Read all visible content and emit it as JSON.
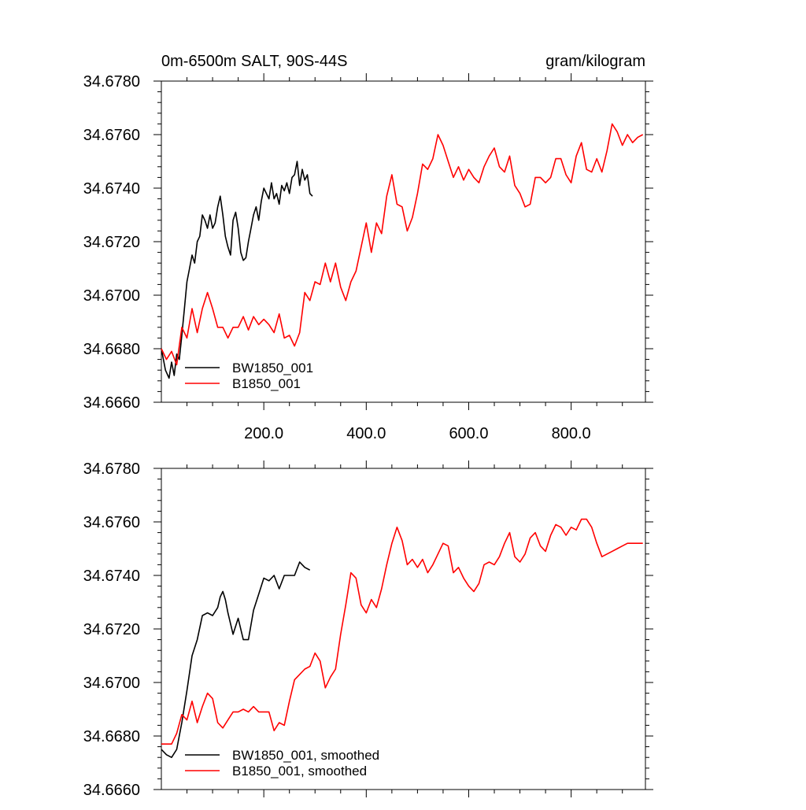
{
  "colors": {
    "bw": "#000000",
    "b": "#ff0000"
  },
  "chart_data": [
    {
      "type": "line",
      "title": "0m-6500m SALT, 90S-44S",
      "units": "gram/kilogram",
      "xlabel": "",
      "ylabel": "",
      "xlim": [
        0,
        945
      ],
      "ylim": [
        34.666,
        34.678
      ],
      "xticks": [
        200,
        400,
        600,
        800
      ],
      "xtick_labels": [
        "200.0",
        "400.0",
        "600.0",
        "800.0"
      ],
      "yticks": [
        34.666,
        34.668,
        34.67,
        34.672,
        34.674,
        34.676,
        34.678
      ],
      "ytick_labels": [
        "34.6660",
        "34.6680",
        "34.6700",
        "34.6720",
        "34.6740",
        "34.6760",
        "34.6780"
      ],
      "grid": false,
      "legend_position": "bottom-left",
      "series": [
        {
          "name": "BW1850_001",
          "color": "#000000",
          "x": [
            0,
            8,
            15,
            20,
            25,
            30,
            35,
            40,
            45,
            50,
            55,
            60,
            65,
            70,
            75,
            80,
            85,
            90,
            95,
            100,
            105,
            110,
            115,
            120,
            125,
            130,
            135,
            140,
            145,
            150,
            155,
            160,
            165,
            170,
            175,
            180,
            185,
            190,
            195,
            200,
            205,
            210,
            215,
            220,
            225,
            230,
            235,
            240,
            245,
            250,
            255,
            260,
            265,
            270,
            275,
            280,
            285,
            290,
            295
          ],
          "values": [
            34.668,
            34.6672,
            34.6669,
            34.6675,
            34.667,
            34.6678,
            34.6676,
            34.6685,
            34.6695,
            34.6705,
            34.671,
            34.6715,
            34.6712,
            34.672,
            34.6722,
            34.673,
            34.6728,
            34.6725,
            34.673,
            34.6725,
            34.6727,
            34.6733,
            34.6737,
            34.673,
            34.6722,
            34.6718,
            34.6715,
            34.6728,
            34.6731,
            34.6725,
            34.6716,
            34.6713,
            34.6714,
            34.672,
            34.6725,
            34.673,
            34.6733,
            34.6728,
            34.6735,
            34.674,
            34.6738,
            34.6736,
            34.6742,
            34.6736,
            34.6738,
            34.6734,
            34.6741,
            34.6739,
            34.6742,
            34.6738,
            34.6744,
            34.6745,
            34.675,
            34.6741,
            34.6747,
            34.6743,
            34.6745,
            34.6738,
            34.6737
          ]
        },
        {
          "name": "B1850_001",
          "color": "#ff0000",
          "x": [
            0,
            10,
            20,
            30,
            40,
            50,
            60,
            70,
            80,
            90,
            100,
            110,
            120,
            130,
            140,
            150,
            160,
            170,
            180,
            190,
            200,
            210,
            220,
            230,
            240,
            250,
            260,
            270,
            280,
            290,
            300,
            310,
            320,
            330,
            340,
            350,
            360,
            370,
            380,
            390,
            400,
            410,
            420,
            430,
            440,
            450,
            460,
            470,
            480,
            490,
            500,
            510,
            520,
            530,
            540,
            550,
            560,
            570,
            580,
            590,
            600,
            610,
            620,
            630,
            640,
            650,
            660,
            670,
            680,
            690,
            700,
            710,
            720,
            730,
            740,
            750,
            760,
            770,
            780,
            790,
            800,
            810,
            820,
            830,
            840,
            850,
            860,
            870,
            880,
            890,
            900,
            910,
            920,
            930,
            940
          ],
          "values": [
            34.668,
            34.6676,
            34.6679,
            34.6674,
            34.6688,
            34.6684,
            34.6695,
            34.6686,
            34.6695,
            34.6701,
            34.6695,
            34.6688,
            34.6688,
            34.6684,
            34.6688,
            34.6688,
            34.6692,
            34.6687,
            34.6692,
            34.6689,
            34.6691,
            34.6689,
            34.6686,
            34.6693,
            34.6684,
            34.6685,
            34.6681,
            34.6686,
            34.6701,
            34.6698,
            34.6705,
            34.6704,
            34.6712,
            34.6705,
            34.6712,
            34.6703,
            34.6698,
            34.6705,
            34.6709,
            34.6718,
            34.6727,
            34.6716,
            34.6727,
            34.6723,
            34.6737,
            34.6745,
            34.6734,
            34.6733,
            34.6724,
            34.6729,
            34.6738,
            34.6749,
            34.6747,
            34.6751,
            34.676,
            34.6756,
            34.675,
            34.6744,
            34.6748,
            34.6743,
            34.6747,
            34.6744,
            34.6742,
            34.6748,
            34.6752,
            34.6755,
            34.6748,
            34.6746,
            34.6752,
            34.6741,
            34.6738,
            34.6733,
            34.6734,
            34.6744,
            34.6744,
            34.6742,
            34.6744,
            34.6751,
            34.6751,
            34.6745,
            34.6742,
            34.6752,
            34.6757,
            34.6747,
            34.6746,
            34.6751,
            34.6746,
            34.6754,
            34.6764,
            34.6761,
            34.6756,
            34.676,
            34.6757,
            34.6759,
            34.676
          ]
        }
      ]
    },
    {
      "type": "line",
      "title": "",
      "xlabel": "",
      "ylabel": "",
      "xlim": [
        0,
        945
      ],
      "ylim": [
        34.666,
        34.678
      ],
      "xticks": [
        200,
        400,
        600,
        800
      ],
      "xtick_labels": [],
      "yticks": [
        34.666,
        34.668,
        34.67,
        34.672,
        34.674,
        34.676,
        34.678
      ],
      "ytick_labels": [
        "34.6660",
        "34.6680",
        "34.6700",
        "34.6720",
        "34.6740",
        "34.6760",
        "34.6780"
      ],
      "grid": false,
      "legend_position": "bottom-left",
      "series": [
        {
          "name": "BW1850_001, smoothed",
          "color": "#000000",
          "x": [
            0,
            10,
            20,
            30,
            40,
            50,
            60,
            70,
            80,
            90,
            100,
            110,
            115,
            120,
            125,
            130,
            140,
            150,
            160,
            170,
            180,
            190,
            200,
            210,
            220,
            230,
            240,
            250,
            260,
            270,
            280,
            290
          ],
          "values": [
            34.6675,
            34.6673,
            34.6672,
            34.6675,
            34.6685,
            34.6697,
            34.671,
            34.6716,
            34.6725,
            34.6726,
            34.6725,
            34.6728,
            34.6732,
            34.6734,
            34.6731,
            34.6726,
            34.6718,
            34.6724,
            34.6716,
            34.6716,
            34.6727,
            34.6733,
            34.6739,
            34.6738,
            34.674,
            34.6735,
            34.674,
            34.674,
            34.674,
            34.6745,
            34.6743,
            34.6742
          ]
        },
        {
          "name": "B1850_001, smoothed",
          "color": "#ff0000",
          "x": [
            0,
            20,
            30,
            40,
            50,
            60,
            70,
            80,
            90,
            100,
            110,
            120,
            130,
            140,
            150,
            160,
            170,
            180,
            190,
            200,
            210,
            220,
            230,
            240,
            250,
            260,
            270,
            280,
            290,
            300,
            310,
            320,
            330,
            340,
            350,
            360,
            370,
            380,
            390,
            400,
            410,
            420,
            430,
            440,
            450,
            460,
            470,
            480,
            490,
            500,
            510,
            520,
            530,
            540,
            550,
            560,
            570,
            580,
            590,
            600,
            610,
            620,
            630,
            640,
            650,
            660,
            670,
            680,
            690,
            700,
            710,
            720,
            730,
            740,
            750,
            760,
            770,
            780,
            790,
            800,
            810,
            820,
            830,
            840,
            850,
            860,
            870,
            880,
            890,
            900,
            910,
            920,
            930,
            940
          ],
          "values": [
            34.6677,
            34.6677,
            34.6681,
            34.6688,
            34.6686,
            34.6693,
            34.6685,
            34.6691,
            34.6696,
            34.6694,
            34.6685,
            34.6683,
            34.6686,
            34.6689,
            34.6689,
            34.669,
            34.6689,
            34.6691,
            34.6689,
            34.6689,
            34.6689,
            34.6682,
            34.6685,
            34.6684,
            34.6693,
            34.6701,
            34.6703,
            34.6705,
            34.6706,
            34.6711,
            34.6708,
            34.6698,
            34.6702,
            34.6705,
            34.6718,
            34.6729,
            34.6741,
            34.6739,
            34.6729,
            34.6726,
            34.6731,
            34.6728,
            34.6735,
            34.6744,
            34.6752,
            34.6758,
            34.6753,
            34.6744,
            34.6746,
            34.6743,
            34.6746,
            34.6741,
            34.6744,
            34.6748,
            34.6752,
            34.6751,
            34.6741,
            34.6743,
            34.6739,
            34.6736,
            34.6734,
            34.6737,
            34.6744,
            34.6745,
            34.6744,
            34.6747,
            34.6752,
            34.6756,
            34.6747,
            34.6745,
            34.6748,
            34.6754,
            34.6756,
            34.6751,
            34.6749,
            34.6755,
            34.6759,
            34.6758,
            34.6755,
            34.6758,
            34.6757,
            34.6761,
            34.6761,
            34.6758,
            34.6752,
            34.6747,
            34.6748,
            34.6749,
            34.675,
            34.6751,
            34.6752,
            34.6752,
            34.6752,
            34.6752
          ]
        }
      ]
    }
  ]
}
